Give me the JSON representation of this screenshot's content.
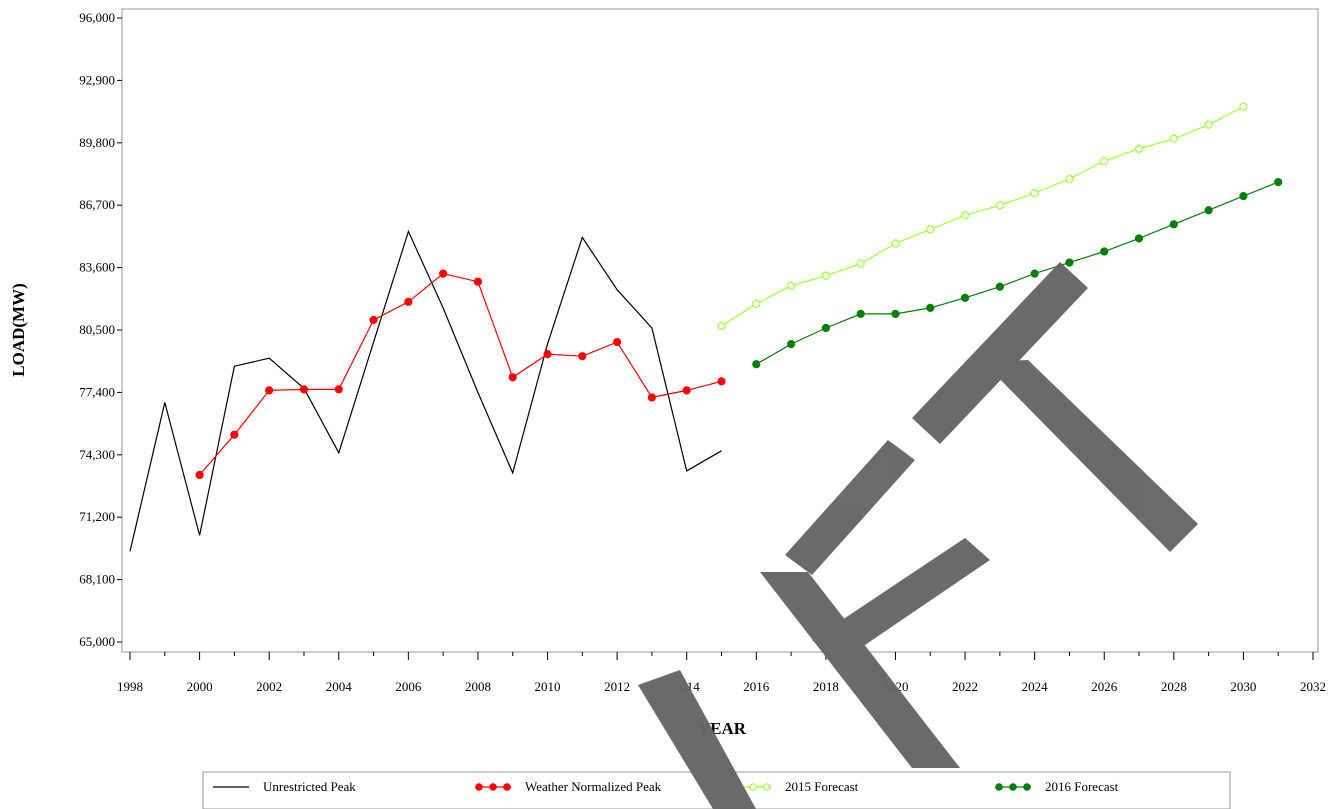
{
  "chart_data": {
    "type": "line",
    "title": "",
    "xlabel": "YEAR",
    "ylabel": "LOAD(MW)",
    "xlim": [
      1998,
      2032
    ],
    "ylim": [
      65000,
      96000
    ],
    "x_ticks": [
      1998,
      2000,
      2002,
      2004,
      2006,
      2008,
      2010,
      2012,
      2014,
      2016,
      2018,
      2020,
      2022,
      2024,
      2026,
      2028,
      2030,
      2032
    ],
    "y_ticks": [
      65000,
      68100,
      71200,
      74300,
      77400,
      80500,
      83600,
      86700,
      89800,
      92900,
      96000
    ],
    "y_tick_labels": [
      "65,000",
      "68,100",
      "71,200",
      "74,300",
      "77,400",
      "80,500",
      "83,600",
      "86,700",
      "89,800",
      "92,900",
      "96,000"
    ],
    "grid": false,
    "legend_position": "bottom",
    "watermark": "DRAFT",
    "series": [
      {
        "name": "Unrestricted Peak",
        "color": "#000000",
        "marker": "none",
        "x": [
          1998,
          1999,
          2000,
          2001,
          2002,
          2003,
          2004,
          2005,
          2006,
          2007,
          2008,
          2009,
          2010,
          2011,
          2012,
          2013,
          2014,
          2015
        ],
        "values": [
          69500,
          76900,
          70300,
          78700,
          79100,
          77600,
          74400,
          79900,
          85400,
          81600,
          77400,
          73400,
          79800,
          85100,
          82500,
          80600,
          73500,
          74500
        ]
      },
      {
        "name": "Weather Normalized Peak",
        "color": "#ff0000",
        "marker": "filled",
        "x": [
          2000,
          2001,
          2002,
          2003,
          2004,
          2005,
          2006,
          2007,
          2008,
          2009,
          2010,
          2011,
          2012,
          2013,
          2014,
          2015
        ],
        "values": [
          73300,
          75300,
          77500,
          77550,
          77550,
          81000,
          81900,
          83300,
          82900,
          78150,
          79300,
          79200,
          79900,
          77150,
          77500,
          77950
        ]
      },
      {
        "name": "2015 Forecast",
        "color": "#99ff33",
        "marker": "open",
        "x": [
          2015,
          2016,
          2017,
          2018,
          2019,
          2020,
          2021,
          2022,
          2023,
          2024,
          2025,
          2026,
          2027,
          2028,
          2029,
          2030
        ],
        "values": [
          80700,
          81800,
          82700,
          83200,
          83800,
          84800,
          85500,
          86200,
          86700,
          87300,
          88000,
          88900,
          89500,
          90000,
          90700,
          91600
        ]
      },
      {
        "name": "2016 Forecast",
        "color": "#008000",
        "marker": "filled",
        "x": [
          2016,
          2017,
          2018,
          2019,
          2020,
          2021,
          2022,
          2023,
          2024,
          2025,
          2026,
          2027,
          2028,
          2029,
          2030,
          2031
        ],
        "values": [
          78800,
          79800,
          80600,
          81300,
          81300,
          81600,
          82100,
          82650,
          83300,
          83850,
          84400,
          85050,
          85750,
          86450,
          87150,
          87850
        ]
      }
    ]
  }
}
